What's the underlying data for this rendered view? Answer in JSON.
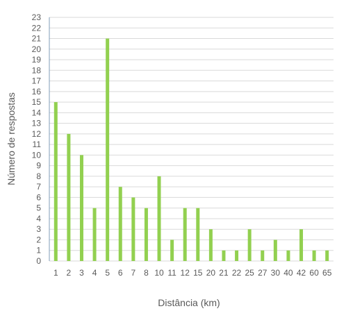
{
  "chart_data": {
    "type": "bar",
    "categories": [
      "1",
      "2",
      "3",
      "4",
      "5",
      "6",
      "7",
      "8",
      "10",
      "11",
      "12",
      "15",
      "20",
      "21",
      "22",
      "25",
      "27",
      "30",
      "40",
      "42",
      "60",
      "65"
    ],
    "values": [
      15,
      12,
      10,
      5,
      21,
      7,
      6,
      5,
      8,
      2,
      5,
      5,
      3,
      1,
      1,
      3,
      1,
      2,
      1,
      3,
      1,
      1
    ],
    "xlabel": "Distância (km)",
    "ylabel": "Número de respostas",
    "ylim": [
      0,
      23
    ],
    "yticks": [
      0,
      1,
      2,
      3,
      4,
      5,
      6,
      7,
      8,
      9,
      10,
      11,
      12,
      13,
      14,
      15,
      16,
      17,
      18,
      19,
      20,
      21,
      22,
      23
    ],
    "grid": true,
    "bar_color": "#92d050"
  }
}
